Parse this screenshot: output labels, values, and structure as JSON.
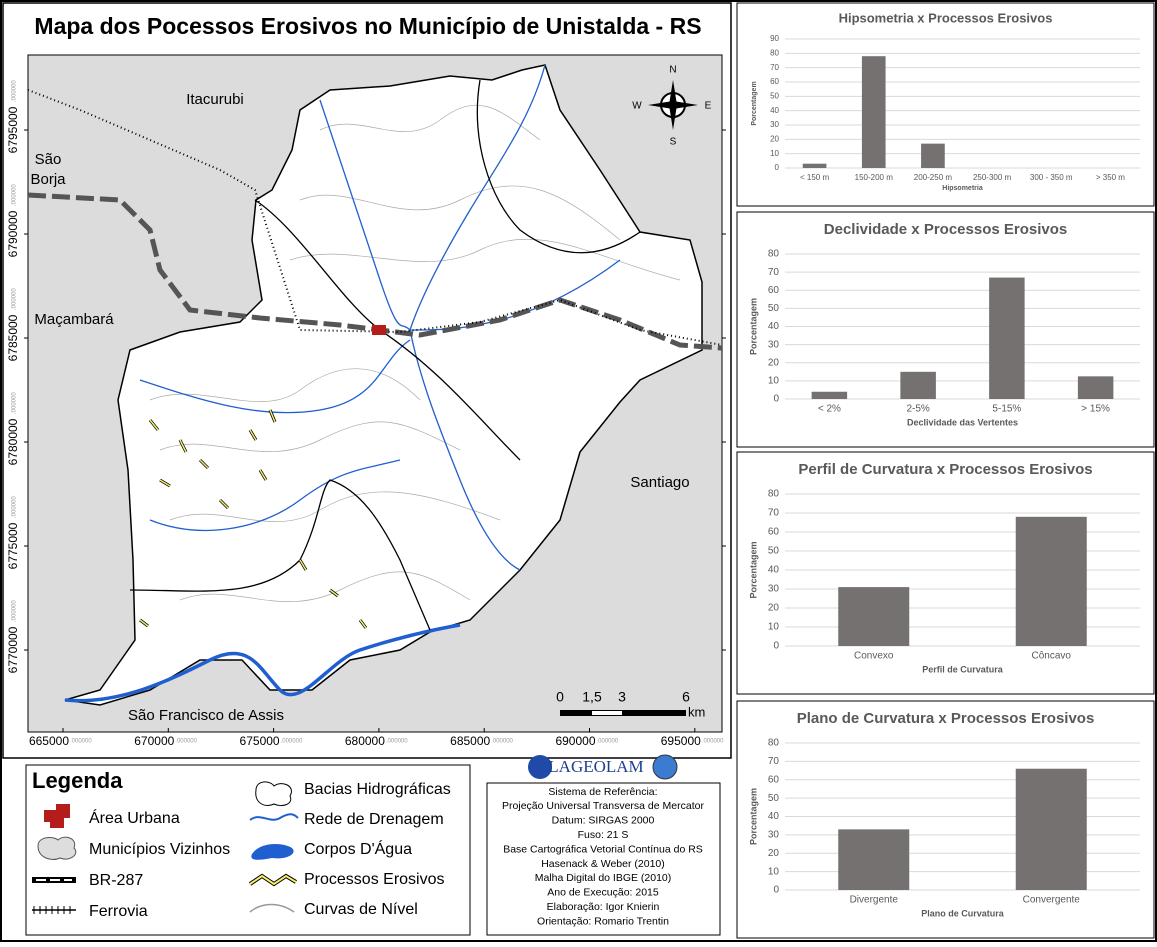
{
  "map": {
    "title": "Mapa dos Pocessos Erosivos no Município de Unistalda - RS",
    "places": [
      "Itacurubi",
      "São Borja",
      "Maçambará",
      "Santiago",
      "São Francisco de Assis"
    ],
    "compass": [
      "N",
      "S",
      "E",
      "W"
    ],
    "xticks": [
      {
        "value": 665000,
        "label": "665000"
      },
      {
        "value": 670000,
        "label": "670000"
      },
      {
        "value": 675000,
        "label": "675000"
      },
      {
        "value": 680000,
        "label": "680000"
      },
      {
        "value": 685000,
        "label": "685000"
      },
      {
        "value": 690000,
        "label": "690000"
      },
      {
        "value": 695000,
        "label": "695000"
      }
    ],
    "yticks": [
      {
        "value": 6795000,
        "label": "6795000"
      },
      {
        "value": 6790000,
        "label": "6790000"
      },
      {
        "value": 6785000,
        "label": "6785000"
      },
      {
        "value": 6780000,
        "label": "6780000"
      },
      {
        "value": 6775000,
        "label": "6775000"
      },
      {
        "value": 6770000,
        "label": "6770000"
      }
    ],
    "coord_suffix": ".000000",
    "scale_labels": [
      "0",
      "1,5",
      "3",
      "6"
    ],
    "scale_unit": "km"
  },
  "legend": {
    "title": "Legenda",
    "items": [
      "Área Urbana",
      "Municípios Vizinhos",
      "BR-287",
      "Ferrovia",
      "Bacias Hidrográficas",
      "Rede de Drenagem",
      "Corpos D'Água",
      "Processos Erosivos",
      "Curvas de Nível"
    ]
  },
  "logo": "LAGEOLAM",
  "info": [
    "Sistema de Referência:",
    "Projeção Universal Transversa de Mercator",
    "Datum: SIRGAS 2000",
    "Fuso: 21 S",
    "Base Cartográfica Vetorial Contínua do RS",
    "Hasenack & Weber (2010)",
    "Malha Digital do IBGE (2010)",
    "Ano de Execução: 2015",
    "Elaboração: Igor Knierin",
    "Orientação: Romario Trentin"
  ],
  "chart_data": [
    {
      "type": "bar",
      "title": "Hipsometria x Processos Erosivos",
      "x_label": "Hipsometria",
      "y_label": "Porcentagem",
      "categories": [
        "<  150 m",
        "150-200 m",
        "200-250 m",
        "250-300 m",
        "300 - 350 m",
        "> 350 m"
      ],
      "values": [
        3,
        78,
        17,
        0,
        0,
        0
      ],
      "color": "#767171",
      "ylim": [
        0,
        90
      ],
      "yticks": [
        0,
        10,
        20,
        30,
        40,
        50,
        60,
        70,
        80,
        90
      ],
      "grid": true
    },
    {
      "type": "bar",
      "title": "Declividade x Processos Erosivos",
      "x_label": "Declividade das Vertentes",
      "y_label": "Porcentagem",
      "categories": [
        "< 2%",
        "2-5%",
        "5-15%",
        "> 15%"
      ],
      "values": [
        4,
        15,
        67,
        12.5
      ],
      "color": "#767171",
      "ylim": [
        0,
        80
      ],
      "yticks": [
        0,
        10,
        20,
        30,
        40,
        50,
        60,
        70,
        80
      ],
      "grid": true
    },
    {
      "type": "bar",
      "title": "Perfil de Curvatura x Processos Erosivos",
      "x_label": "Perfil de Curvatura",
      "y_label": "Porcentagem",
      "categories": [
        "Convexo",
        "Côncavo"
      ],
      "values": [
        31,
        68
      ],
      "color": "#767171",
      "ylim": [
        0,
        80
      ],
      "yticks": [
        0,
        10,
        20,
        30,
        40,
        50,
        60,
        70,
        80
      ],
      "grid": true
    },
    {
      "type": "bar",
      "title": "Plano de Curvatura x Processos Erosivos",
      "x_label": "Plano de Curvatura",
      "y_label": "Porcentagem",
      "categories": [
        "Divergente",
        "Convergente"
      ],
      "values": [
        33,
        66
      ],
      "color": "#767171",
      "ylim": [
        0,
        80
      ],
      "yticks": [
        0,
        10,
        20,
        30,
        40,
        50,
        60,
        70,
        80
      ],
      "grid": true
    }
  ]
}
